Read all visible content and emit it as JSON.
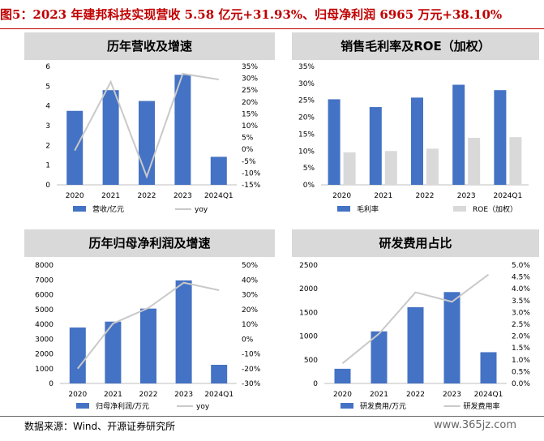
{
  "figure_title": "图5：2023 年建邦科技实现营收 5.58 亿元+31.93%、归母净利润 6965 万元+38.10%",
  "source": "数据来源：Wind、开源证券研究所",
  "watermark": "www.365jz.com",
  "colors": {
    "bar": "#4472c4",
    "bar_gray": "#d9d9d9",
    "line": "#c9c9c9",
    "title": "#c00000"
  },
  "chart_data": [
    {
      "type": "bar",
      "title": "历年营收及增速",
      "categories": [
        "2020",
        "2021",
        "2022",
        "2023",
        "2024Q1"
      ],
      "series": [
        {
          "name": "营收/亿元",
          "type": "bar",
          "axis": "left",
          "values": [
            3.75,
            4.8,
            4.25,
            5.58,
            1.42
          ]
        },
        {
          "name": "yoy",
          "type": "line",
          "axis": "right",
          "values": [
            -0.5,
            28.5,
            -11.5,
            31.93,
            29.5
          ]
        }
      ],
      "ylim_left": [
        0,
        6
      ],
      "yticks_left": [
        "0",
        "1",
        "2",
        "3",
        "4",
        "5",
        "6"
      ],
      "ylim_right": [
        -15,
        35
      ],
      "yticks_right": [
        "-15%",
        "-10%",
        "-5%",
        "0%",
        "5%",
        "10%",
        "15%",
        "20%",
        "25%",
        "30%",
        "35%"
      ],
      "legend": "bottom"
    },
    {
      "type": "bar",
      "title": "销售毛利率及ROE（加权）",
      "categories": [
        "2020",
        "2021",
        "2022",
        "2023",
        "2024Q1"
      ],
      "series": [
        {
          "name": "毛利率",
          "type": "bar",
          "color": "blue",
          "values": [
            25.3,
            23.0,
            25.8,
            29.6,
            28.0
          ]
        },
        {
          "name": "ROE（加权）",
          "type": "bar",
          "color": "gray",
          "values": [
            9.6,
            10.0,
            10.7,
            13.9,
            14.1
          ]
        }
      ],
      "ylim_left": [
        0,
        35
      ],
      "yticks_left": [
        "0%",
        "5%",
        "10%",
        "15%",
        "20%",
        "25%",
        "30%",
        "35%"
      ],
      "legend": "bottom"
    },
    {
      "type": "bar",
      "title": "历年归母净利润及增速",
      "categories": [
        "2020",
        "2021",
        "2022",
        "2023",
        "2024Q1"
      ],
      "series": [
        {
          "name": "归母净利润/万元",
          "type": "bar",
          "axis": "left",
          "values": [
            3780,
            4180,
            5060,
            6965,
            1260
          ]
        },
        {
          "name": "yoy",
          "type": "line",
          "axis": "right",
          "values": [
            -20.0,
            10.5,
            21.0,
            38.1,
            33.0
          ]
        }
      ],
      "ylim_left": [
        0,
        8000
      ],
      "yticks_left": [
        "0",
        "1000",
        "2000",
        "3000",
        "4000",
        "5000",
        "6000",
        "7000",
        "8000"
      ],
      "ylim_right": [
        -30,
        50
      ],
      "yticks_right": [
        "-30%",
        "-20%",
        "-10%",
        "0%",
        "10%",
        "20%",
        "30%",
        "40%",
        "50%"
      ],
      "legend": "bottom"
    },
    {
      "type": "bar",
      "title": "研发费用占比",
      "categories": [
        "2020",
        "2021",
        "2022",
        "2023",
        "2024Q1"
      ],
      "series": [
        {
          "name": "研发费用/万元",
          "type": "bar",
          "axis": "left",
          "values": [
            310,
            1100,
            1610,
            1930,
            660
          ]
        },
        {
          "name": "研发费用率",
          "type": "line",
          "axis": "right",
          "values": [
            0.85,
            2.1,
            3.85,
            3.45,
            4.6
          ]
        }
      ],
      "ylim_left": [
        0,
        2500
      ],
      "yticks_left": [
        "0",
        "500",
        "1000",
        "1500",
        "2000",
        "2500"
      ],
      "ylim_right": [
        0,
        5
      ],
      "yticks_right": [
        "0.0%",
        "0.5%",
        "1.0%",
        "1.5%",
        "2.0%",
        "2.5%",
        "3.0%",
        "3.5%",
        "4.0%",
        "4.5%",
        "5.0%"
      ],
      "legend": "bottom"
    }
  ]
}
